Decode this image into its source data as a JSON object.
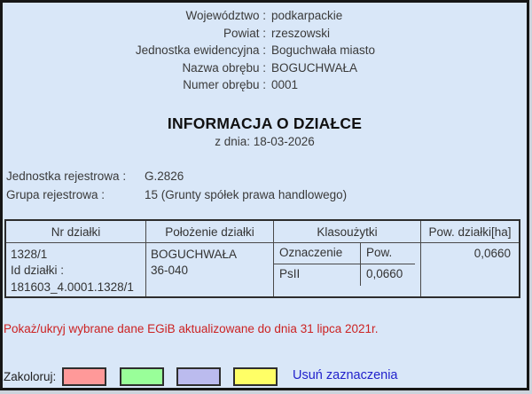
{
  "header": {
    "rows": [
      {
        "label": "Województwo :",
        "value": "podkarpackie"
      },
      {
        "label": "Powiat :",
        "value": "rzeszowski"
      },
      {
        "label": "Jednostka ewidencyjna :",
        "value": "Boguchwała miasto"
      },
      {
        "label": "Nazwa obrębu :",
        "value": "BOGUCHWAŁA"
      },
      {
        "label": "Numer obrębu :",
        "value": "0001"
      }
    ]
  },
  "title": "INFORMACJA O DZIAŁCE",
  "date_line": "z dnia: 18-03-2026",
  "registry": [
    {
      "label": "Jednostka rejestrowa :",
      "value": "G.2826"
    },
    {
      "label": "Grupa rejestrowa :",
      "value": "15 (Grunty spółek prawa handlowego)"
    }
  ],
  "table": {
    "headers": [
      "Nr działki",
      "Położenie działki",
      "Klasoużytki",
      "Pow. działki[ha]"
    ],
    "row": {
      "parcel_number": "1328/1",
      "parcel_id_label": "Id działki :",
      "parcel_id": "181603_4.0001.1328/1",
      "location_line1": "BOGUCHWAŁA",
      "location_line2": "36-040",
      "landuse_header_label": "Oznaczenie",
      "landuse_header_area": "Pow.",
      "landuse_code": "PsII",
      "landuse_area": "0,0660",
      "area_total": "0,0660"
    }
  },
  "egib_toggle": "Pokaż/ukryj wybrane dane EGiB aktualizowane do dnia 31 lipca 2021r.",
  "footer": {
    "colorize_label": "Zakoloruj:",
    "swatches": [
      {
        "name": "salmon",
        "color": "#ff9999"
      },
      {
        "name": "green",
        "color": "#99ff99"
      },
      {
        "name": "lavender",
        "color": "#bbbbee"
      },
      {
        "name": "yellow",
        "color": "#ffff66"
      }
    ],
    "clear_label": "Usuń zaznaczenia"
  },
  "colors": {
    "page_background": "#d9e7f8",
    "frame": "#161616",
    "alert_red": "#cc2222",
    "link_blue": "#2222cc"
  }
}
